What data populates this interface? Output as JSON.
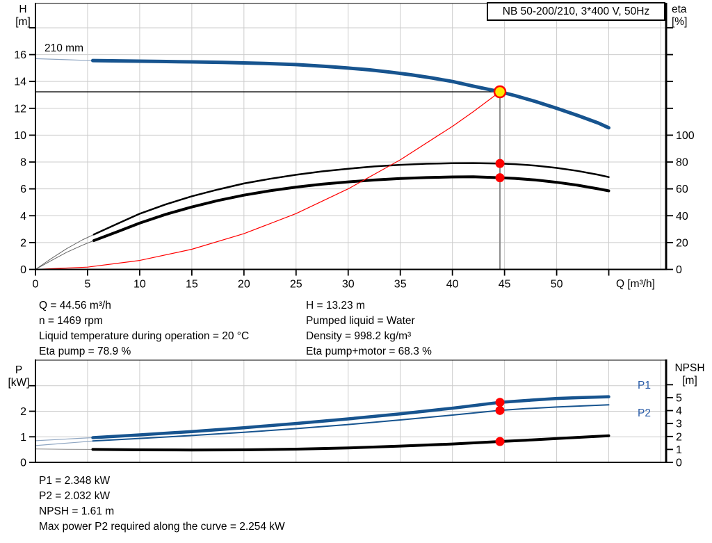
{
  "model_box": "NB 50-200/210, 3*400 V, 50Hz",
  "labels": {
    "h_axis": [
      "H",
      "[m]"
    ],
    "eta_axis": [
      "eta",
      "[%]"
    ],
    "q_axis": "Q [m³/h]",
    "p_axis": [
      "P",
      "[kW]"
    ],
    "npsh_axis": [
      "NPSH",
      "[m]"
    ],
    "impeller": "210 mm",
    "p1": "P1",
    "p2": "P2"
  },
  "operating_info": {
    "left": [
      "Q = 44.56 m³/h",
      "n = 1469 rpm",
      "Liquid temperature during operation = 20 °C",
      "Eta pump = 78.9 %"
    ],
    "right": [
      "H = 13.23 m",
      "Pumped liquid = Water",
      "Density = 998.2 kg/m³",
      "Eta pump+motor = 68.3 %"
    ]
  },
  "result_info": [
    "P1 = 2.348 kW",
    "P2 = 2.032 kW",
    "NPSH = 1.61 m",
    "Max power P2 required along the curve = 2.254 kW"
  ],
  "colors": {
    "curve_blue": "#17548F",
    "thin_blue": "#8FA6C2",
    "black": "#000000",
    "thin_gray": "#666666",
    "red": "#FF0000",
    "duty_yellow": "#FFE800",
    "grid": "#CCCCCC",
    "duty_line_gray": "#8C8C8C",
    "label_blue": "#2A5CA8"
  },
  "chart_data": [
    {
      "id": "head-efficiency",
      "type": "line",
      "title": "Pump curve NB 50-200/210",
      "x": {
        "label": "Q [m³/h]",
        "lim": [
          0,
          60.5
        ],
        "ticks": [
          0,
          5,
          10,
          15,
          20,
          25,
          30,
          35,
          40,
          45,
          50
        ],
        "unlabeled_ticks": [
          55
        ],
        "gridlines": [
          5,
          10,
          15,
          20,
          25,
          30,
          35,
          40,
          45,
          50,
          55,
          60
        ]
      },
      "left": {
        "label": "H [m]",
        "lim": [
          0,
          19.81
        ],
        "ticks": [
          0,
          2,
          4,
          6,
          8,
          10,
          12,
          14,
          16
        ],
        "unlabeled_ticks": [
          18
        ],
        "gridlines": [
          2,
          4,
          6,
          8,
          10,
          12,
          14,
          16,
          18
        ]
      },
      "right": {
        "label": "eta [%]",
        "lim": [
          0,
          198.1
        ],
        "ticks": [
          0,
          20,
          40,
          60,
          80,
          100
        ],
        "unlabeled_ticks": [
          120,
          140,
          160,
          180
        ]
      },
      "impeller_label": "210 mm",
      "duty_point": {
        "q": 44.56,
        "h": 13.23,
        "eta_pump": 78.9,
        "eta_pump_motor": 68.3
      },
      "series": [
        {
          "name": "head-210mm-thin",
          "axis": "left",
          "color": "#8FA6C2",
          "width": 1.2,
          "points": [
            [
              0,
              15.7
            ],
            [
              1.5,
              15.66
            ],
            [
              3,
              15.62
            ],
            [
              4.5,
              15.58
            ],
            [
              5.5,
              15.56
            ]
          ]
        },
        {
          "name": "head-210mm",
          "axis": "left",
          "color": "#17548F",
          "width": 5,
          "points": [
            [
              5.5,
              15.56
            ],
            [
              8,
              15.53
            ],
            [
              10,
              15.51
            ],
            [
              12,
              15.49
            ],
            [
              15,
              15.46
            ],
            [
              18,
              15.42
            ],
            [
              20,
              15.38
            ],
            [
              22,
              15.34
            ],
            [
              25,
              15.26
            ],
            [
              28,
              15.12
            ],
            [
              30,
              15.0
            ],
            [
              32,
              14.87
            ],
            [
              34,
              14.7
            ],
            [
              36,
              14.5
            ],
            [
              38,
              14.27
            ],
            [
              40,
              14.0
            ],
            [
              42,
              13.65
            ],
            [
              44.56,
              13.23
            ],
            [
              46,
              12.95
            ],
            [
              48,
              12.5
            ],
            [
              50,
              12.0
            ],
            [
              52,
              11.47
            ],
            [
              54,
              10.9
            ],
            [
              55,
              10.55
            ]
          ]
        },
        {
          "name": "eta-pump-thin",
          "axis": "right",
          "color": "#666666",
          "width": 1,
          "points": [
            [
              0,
              0
            ],
            [
              1.5,
              8
            ],
            [
              3,
              15.5
            ],
            [
              4.5,
              22
            ],
            [
              5.6,
              26
            ]
          ]
        },
        {
          "name": "eta-pump",
          "axis": "right",
          "color": "#000000",
          "width": 2.5,
          "points": [
            [
              5.6,
              26
            ],
            [
              8,
              34.5
            ],
            [
              10,
              41.5
            ],
            [
              12.5,
              48.5
            ],
            [
              15,
              54.5
            ],
            [
              17.5,
              59.5
            ],
            [
              20,
              64
            ],
            [
              22.5,
              67.5
            ],
            [
              25,
              70.5
            ],
            [
              27.5,
              73
            ],
            [
              30,
              75
            ],
            [
              32.5,
              76.7
            ],
            [
              35,
              77.9
            ],
            [
              37.5,
              78.7
            ],
            [
              40,
              79.1
            ],
            [
              42,
              79.2
            ],
            [
              44.56,
              78.9
            ],
            [
              46,
              78.4
            ],
            [
              48,
              77.3
            ],
            [
              50,
              75.6
            ],
            [
              52,
              73.4
            ],
            [
              54,
              70.5
            ],
            [
              55,
              68.8
            ]
          ]
        },
        {
          "name": "eta-pump-motor-thin",
          "axis": "right",
          "color": "#666666",
          "width": 1,
          "points": [
            [
              0,
              0
            ],
            [
              1.5,
              6.5
            ],
            [
              3,
              12.8
            ],
            [
              4.5,
              18
            ],
            [
              5.6,
              21.5
            ]
          ]
        },
        {
          "name": "eta-pump-motor",
          "axis": "right",
          "color": "#000000",
          "width": 4,
          "points": [
            [
              5.6,
              21.5
            ],
            [
              8,
              28.5
            ],
            [
              10,
              34.5
            ],
            [
              12.5,
              41
            ],
            [
              15,
              46.5
            ],
            [
              17.5,
              51.3
            ],
            [
              20,
              55.3
            ],
            [
              22.5,
              58.6
            ],
            [
              25,
              61.3
            ],
            [
              27.5,
              63.5
            ],
            [
              30,
              65.2
            ],
            [
              32.5,
              66.6
            ],
            [
              35,
              67.7
            ],
            [
              37.5,
              68.4
            ],
            [
              40,
              68.9
            ],
            [
              42,
              69.0
            ],
            [
              44.56,
              68.3
            ],
            [
              46,
              67.8
            ],
            [
              48,
              66.6
            ],
            [
              50,
              64.9
            ],
            [
              52,
              62.7
            ],
            [
              54,
              60.0
            ],
            [
              55,
              58.5
            ]
          ]
        },
        {
          "name": "system-curve",
          "axis": "left",
          "color": "#FF0000",
          "width": 1.2,
          "points": [
            [
              0,
              0
            ],
            [
              5,
              0.17
            ],
            [
              10,
              0.67
            ],
            [
              15,
              1.5
            ],
            [
              20,
              2.66
            ],
            [
              25,
              4.16
            ],
            [
              30,
              6.0
            ],
            [
              35,
              8.16
            ],
            [
              40,
              10.66
            ],
            [
              42,
              11.75
            ],
            [
              44.56,
              13.23
            ]
          ]
        }
      ],
      "markers": [
        {
          "style": "duty",
          "axis": "left",
          "x": 44.56,
          "y": 13.23
        },
        {
          "style": "dot",
          "axis": "right",
          "x": 44.56,
          "y": 78.9
        },
        {
          "style": "dot",
          "axis": "right",
          "x": 44.56,
          "y": 68.3
        }
      ]
    },
    {
      "id": "power-npsh",
      "type": "line",
      "title": "Power and NPSH curve",
      "x": {
        "label": "",
        "lim": [
          0,
          60.5
        ],
        "ticks": [],
        "unlabeled_ticks": [],
        "gridlines": [
          5,
          10,
          15,
          20,
          25,
          30,
          35,
          40,
          45,
          50,
          55,
          60
        ]
      },
      "left": {
        "label": "P [kW]",
        "lim": [
          0,
          4.0
        ],
        "ticks": [
          0,
          1,
          2
        ],
        "unlabeled_ticks": [
          3
        ],
        "gridlines": [
          1,
          2,
          3
        ]
      },
      "right": {
        "label": "NPSH [m]",
        "lim": [
          0,
          7.9
        ],
        "ticks": [
          0,
          1,
          2,
          3,
          4,
          5
        ],
        "unlabeled_ticks": [
          6
        ]
      },
      "duty_point": {
        "q": 44.56,
        "p1": 2.348,
        "p2": 2.032,
        "npsh": 1.61
      },
      "series": [
        {
          "name": "p1-thin",
          "axis": "left",
          "color": "#8FA6C2",
          "width": 1.2,
          "points": [
            [
              0,
              0.845
            ],
            [
              2,
              0.89
            ],
            [
              4,
              0.935
            ],
            [
              5.5,
              0.965
            ]
          ]
        },
        {
          "name": "p1",
          "axis": "left",
          "color": "#17548F",
          "width": 4.5,
          "points": [
            [
              5.5,
              0.965
            ],
            [
              10,
              1.075
            ],
            [
              15,
              1.205
            ],
            [
              20,
              1.355
            ],
            [
              25,
              1.52
            ],
            [
              30,
              1.7
            ],
            [
              35,
              1.9
            ],
            [
              40,
              2.12
            ],
            [
              44.56,
              2.348
            ],
            [
              47,
              2.42
            ],
            [
              50,
              2.5
            ],
            [
              52,
              2.53
            ],
            [
              55,
              2.57
            ]
          ]
        },
        {
          "name": "p2-thin",
          "axis": "left",
          "color": "#8FA6C2",
          "width": 1.2,
          "points": [
            [
              0,
              0.655
            ],
            [
              2,
              0.72
            ],
            [
              4,
              0.785
            ],
            [
              5.5,
              0.835
            ]
          ]
        },
        {
          "name": "p2",
          "axis": "left",
          "color": "#17548F",
          "width": 2,
          "points": [
            [
              5.5,
              0.835
            ],
            [
              10,
              0.935
            ],
            [
              15,
              1.05
            ],
            [
              20,
              1.175
            ],
            [
              25,
              1.32
            ],
            [
              30,
              1.48
            ],
            [
              35,
              1.66
            ],
            [
              40,
              1.85
            ],
            [
              44.56,
              2.032
            ],
            [
              47,
              2.1
            ],
            [
              50,
              2.165
            ],
            [
              52,
              2.2
            ],
            [
              55,
              2.25
            ]
          ]
        },
        {
          "name": "npsh-thin",
          "axis": "right",
          "color": "#888888",
          "width": 1,
          "points": [
            [
              0,
              1.03
            ],
            [
              3,
              1.01
            ],
            [
              5.5,
              1.0
            ]
          ]
        },
        {
          "name": "npsh",
          "axis": "right",
          "color": "#000000",
          "width": 4,
          "points": [
            [
              5.5,
              1.0
            ],
            [
              10,
              0.97
            ],
            [
              15,
              0.955
            ],
            [
              20,
              0.97
            ],
            [
              25,
              1.02
            ],
            [
              30,
              1.11
            ],
            [
              35,
              1.26
            ],
            [
              40,
              1.42
            ],
            [
              44.56,
              1.61
            ],
            [
              47,
              1.71
            ],
            [
              50,
              1.84
            ],
            [
              52,
              1.93
            ],
            [
              55,
              2.06
            ]
          ]
        }
      ],
      "markers": [
        {
          "style": "dot",
          "axis": "left",
          "x": 44.56,
          "y": 2.348
        },
        {
          "style": "dot",
          "axis": "left",
          "x": 44.56,
          "y": 2.032
        },
        {
          "style": "dot",
          "axis": "right",
          "x": 44.56,
          "y": 1.61
        }
      ]
    }
  ]
}
